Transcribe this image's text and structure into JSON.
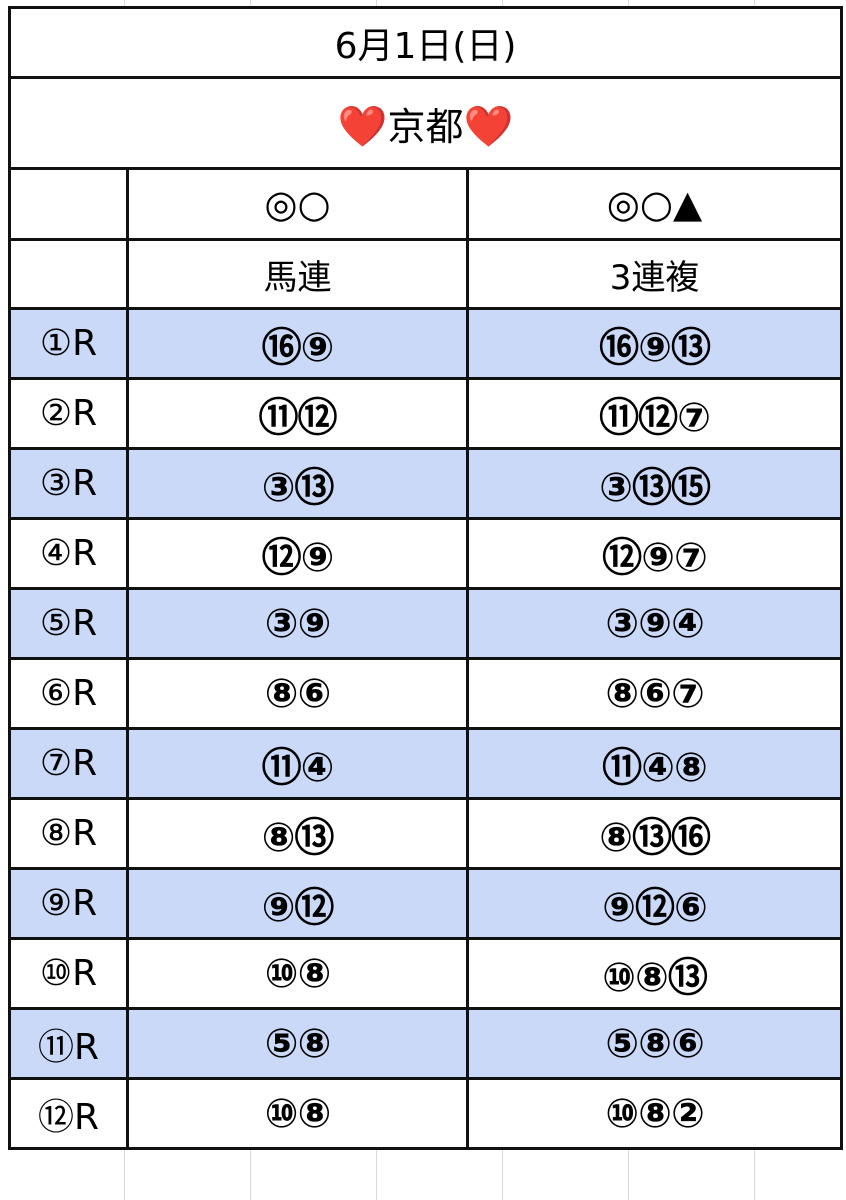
{
  "header": {
    "date": "6月1日(日)",
    "venue_prefix": "❤️",
    "venue": "京都",
    "venue_suffix": "❤️"
  },
  "columns": {
    "marks_umaren": "◎○",
    "marks_sanrenpuku": "◎○▲",
    "bet_umaren": "馬連",
    "bet_sanrenpuku": "3連複"
  },
  "races": [
    {
      "race": "①R",
      "umaren": "⑯⑨",
      "sanrenpuku": "⑯⑨⑬"
    },
    {
      "race": "②R",
      "umaren": "⑪⑫",
      "sanrenpuku": "⑪⑫⑦"
    },
    {
      "race": "③R",
      "umaren": "③⑬",
      "sanrenpuku": "③⑬⑮"
    },
    {
      "race": "④R",
      "umaren": "⑫⑨",
      "sanrenpuku": "⑫⑨⑦"
    },
    {
      "race": "⑤R",
      "umaren": "③⑨",
      "sanrenpuku": "③⑨④"
    },
    {
      "race": "⑥R",
      "umaren": "⑧⑥",
      "sanrenpuku": "⑧⑥⑦"
    },
    {
      "race": "⑦R",
      "umaren": "⑪④",
      "sanrenpuku": "⑪④⑧"
    },
    {
      "race": "⑧R",
      "umaren": "⑧⑬",
      "sanrenpuku": "⑧⑬⑯"
    },
    {
      "race": "⑨R",
      "umaren": "⑨⑫",
      "sanrenpuku": "⑨⑫⑥"
    },
    {
      "race": "⑩R",
      "umaren": "⑩⑧",
      "sanrenpuku": "⑩⑧⑬"
    },
    {
      "race": "⑪R",
      "umaren": "⑤⑧",
      "sanrenpuku": "⑤⑧⑥"
    },
    {
      "race": "⑫R",
      "umaren": "⑩⑧",
      "sanrenpuku": "⑩⑧②"
    }
  ],
  "colors": {
    "alt_row": "#c9d9f7",
    "border": "#111111",
    "heart": "#e0202a"
  }
}
